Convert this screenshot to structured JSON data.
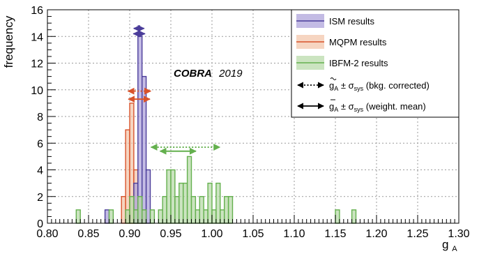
{
  "chart_data": {
    "type": "histogram",
    "xlabel": "g",
    "xlabel_sub": "A",
    "ylabel": "frequency",
    "xlim": [
      0.8,
      1.3
    ],
    "ylim": [
      0,
      16
    ],
    "grid": true,
    "bin_width": 0.005,
    "x_ticks": [
      "0.80",
      "0.85",
      "0.90",
      "0.95",
      "1.00",
      "1.05",
      "1.10",
      "1.15",
      "1.20",
      "1.25",
      "1.30"
    ],
    "y_ticks": [
      "0",
      "2",
      "4",
      "6",
      "8",
      "10",
      "12",
      "14",
      "16"
    ],
    "annotation": {
      "bold": "COBRA",
      "rest": "2019"
    },
    "legend_position": "top-right",
    "series": [
      {
        "name": "MQPM results",
        "color": "#d9532b",
        "fill": "#f2c3a6",
        "bins": [
          {
            "x": 0.89,
            "count": 2
          },
          {
            "x": 0.895,
            "count": 7
          },
          {
            "x": 0.9,
            "count": 9
          },
          {
            "x": 0.905,
            "count": 4
          },
          {
            "x": 0.91,
            "count": 2
          },
          {
            "x": 0.915,
            "count": 1
          }
        ]
      },
      {
        "name": "ISM results",
        "color": "#4b3d9a",
        "fill": "#a99ed8",
        "bins": [
          {
            "x": 0.87,
            "count": 1
          },
          {
            "x": 0.905,
            "count": 3
          },
          {
            "x": 0.91,
            "count": 14
          },
          {
            "x": 0.915,
            "count": 11
          },
          {
            "x": 0.92,
            "count": 4
          }
        ]
      },
      {
        "name": "IBFM-2 results",
        "color": "#64b04e",
        "fill": "#b5d9a5",
        "bins": [
          {
            "x": 0.835,
            "count": 1
          },
          {
            "x": 0.875,
            "count": 1
          },
          {
            "x": 0.895,
            "count": 1
          },
          {
            "x": 0.9,
            "count": 2
          },
          {
            "x": 0.905,
            "count": 1
          },
          {
            "x": 0.91,
            "count": 2
          },
          {
            "x": 0.915,
            "count": 1
          },
          {
            "x": 0.925,
            "count": 1
          },
          {
            "x": 0.935,
            "count": 1
          },
          {
            "x": 0.94,
            "count": 2
          },
          {
            "x": 0.945,
            "count": 4
          },
          {
            "x": 0.95,
            "count": 4
          },
          {
            "x": 0.955,
            "count": 2
          },
          {
            "x": 0.96,
            "count": 3
          },
          {
            "x": 0.965,
            "count": 3
          },
          {
            "x": 0.97,
            "count": 5
          },
          {
            "x": 0.975,
            "count": 2
          },
          {
            "x": 0.98,
            "count": 1
          },
          {
            "x": 0.985,
            "count": 2
          },
          {
            "x": 0.99,
            "count": 1
          },
          {
            "x": 0.995,
            "count": 3
          },
          {
            "x": 1.0,
            "count": 1
          },
          {
            "x": 1.005,
            "count": 3
          },
          {
            "x": 1.01,
            "count": 1
          },
          {
            "x": 1.015,
            "count": 2
          },
          {
            "x": 1.02,
            "count": 2
          },
          {
            "x": 1.15,
            "count": 1
          },
          {
            "x": 1.17,
            "count": 1
          }
        ]
      }
    ],
    "error_bars": [
      {
        "series": "ISM results",
        "y": 14.6,
        "kind": "dotted",
        "low": 0.905,
        "high": 0.9175
      },
      {
        "series": "ISM results",
        "y": 14.2,
        "kind": "solid",
        "low": 0.9045,
        "high": 0.9185
      },
      {
        "series": "MQPM results",
        "y": 9.9,
        "kind": "dotted",
        "low": 0.898,
        "high": 0.9255
      },
      {
        "series": "MQPM results",
        "y": 9.3,
        "kind": "solid",
        "low": 0.8985,
        "high": 0.9245
      },
      {
        "series": "IBFM-2 results",
        "y": 5.7,
        "kind": "dotted",
        "low": 0.926,
        "high": 1.0095
      },
      {
        "series": "IBFM-2 results",
        "y": 5.4,
        "kind": "solid",
        "low": 0.937,
        "high": 0.9805
      }
    ],
    "legend": {
      "entries": [
        {
          "series": "ISM results",
          "label": "ISM results"
        },
        {
          "series": "MQPM results",
          "label": "MQPM results"
        },
        {
          "series": "IBFM-2 results",
          "label": "IBFM-2 results"
        }
      ],
      "arrow_entries": [
        {
          "kind": "dotted",
          "label_sym": "g",
          "label_sub": "A",
          "label_pm": " ± σ",
          "label_sys": "sys",
          "label_note": " (bkg. corrected)"
        },
        {
          "kind": "solid",
          "label_sym": "g",
          "label_sub": "A",
          "label_pm": " ± σ",
          "label_sys": "sys",
          "label_note": " (weight. mean)"
        }
      ]
    }
  }
}
